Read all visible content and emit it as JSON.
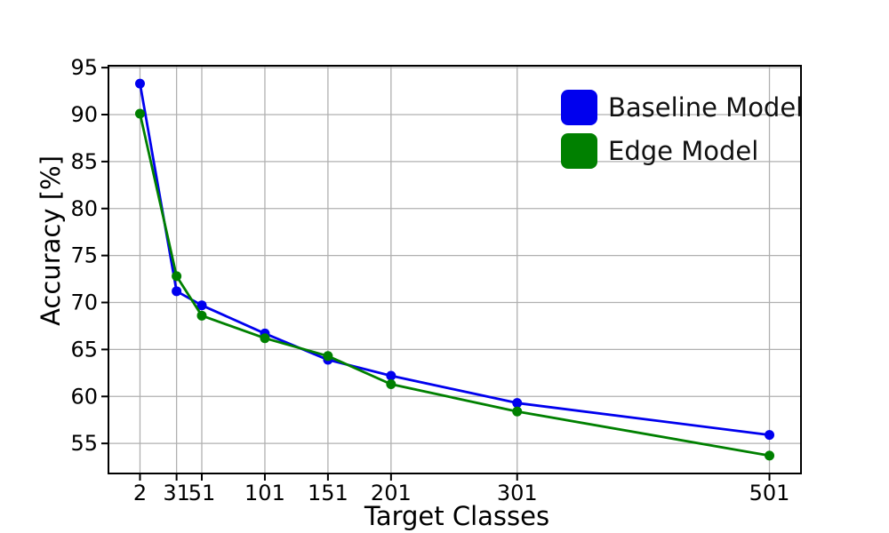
{
  "chart_data": {
    "type": "line",
    "title": "",
    "xlabel": "Target Classes",
    "ylabel": "Accuracy [%]",
    "x": [
      2,
      31,
      51,
      101,
      151,
      201,
      301,
      501
    ],
    "series": [
      {
        "name": "Baseline Model",
        "color": "#0000ee",
        "values": [
          93.3,
          71.2,
          69.7,
          66.7,
          63.9,
          62.2,
          59.3,
          55.9
        ]
      },
      {
        "name": "Edge Model",
        "color": "#008000",
        "values": [
          90.1,
          72.8,
          68.6,
          66.2,
          64.3,
          61.3,
          58.4,
          53.7
        ]
      }
    ],
    "xticks": [
      2,
      31,
      51,
      101,
      151,
      201,
      301,
      501
    ],
    "yticks": [
      55,
      60,
      65,
      70,
      75,
      80,
      85,
      90,
      95
    ],
    "xlim": [
      -23,
      526
    ],
    "ylim": [
      51.8,
      95.2
    ],
    "grid": true,
    "legend": {
      "position": "upper-right",
      "frame": false
    }
  },
  "style": {
    "grid_color": "#b0b0b0",
    "spine_color": "#000000",
    "background": "#ffffff",
    "marker": "circle"
  }
}
